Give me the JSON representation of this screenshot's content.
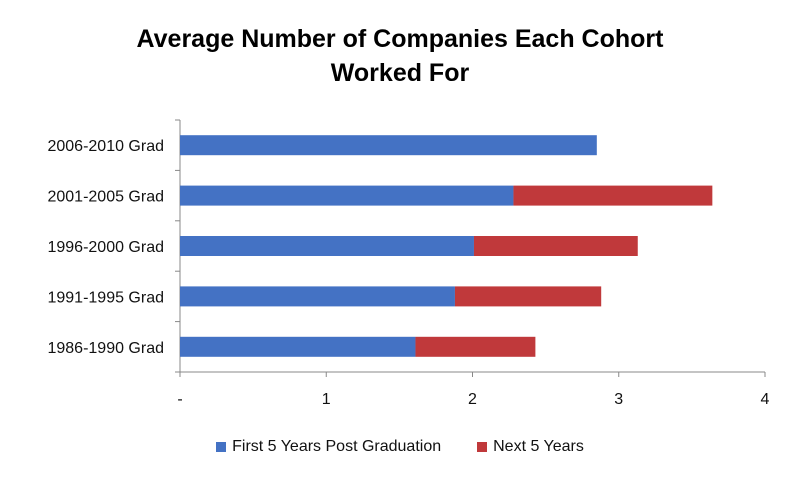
{
  "chart_data": {
    "type": "bar",
    "orientation": "horizontal",
    "stacked": true,
    "title_lines": [
      "Average Number of Companies Each Cohort",
      "Worked For"
    ],
    "categories": [
      "2006-2010 Grad",
      "2001-2005 Grad",
      "1996-2000 Grad",
      "1991-1995 Grad",
      "1986-1990 Grad"
    ],
    "series": [
      {
        "name": "First 5 Years Post Graduation",
        "color": "#4472C4",
        "values": [
          2.85,
          2.28,
          2.01,
          1.88,
          1.61
        ]
      },
      {
        "name": "Next 5 Years",
        "color": "#C0393B",
        "values": [
          0,
          1.36,
          1.12,
          1.0,
          0.82
        ]
      }
    ],
    "xlim": [
      0,
      4
    ],
    "xticks": [
      0,
      1,
      2,
      3,
      4
    ],
    "xtick_labels": [
      "-",
      "1",
      "2",
      "3",
      "4"
    ],
    "grid": false,
    "legend_position": "bottom"
  }
}
